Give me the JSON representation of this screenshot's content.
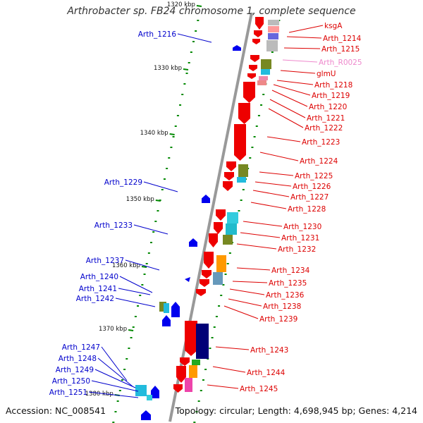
{
  "title": "Arthrobacter sp. FB24 chromosome 1, complete sequence",
  "accession": "Accession: NC_008541",
  "summary": "Topology: circular; Length: 4,698,945 bp; Genes: 4,214",
  "colors": {
    "backbone": "#999999",
    "left_label": "#0000cc",
    "right_label": "#dd0000",
    "rna_label": "#ee88cc",
    "strand_plus": "#ee0000",
    "strand_minus": "#0000ee"
  },
  "kbp_ticks": [
    "1320 kbp",
    "1330 kbp",
    "1340 kbp",
    "1350 kbp",
    "1360 kbp",
    "1370 kbp",
    "1380 kbp"
  ],
  "left_labels": [
    "Arth_1216",
    "Arth_1229",
    "Arth_1233",
    "Arth_1237",
    "Arth_1240",
    "Arth_1241",
    "Arth_1242",
    "Arth_1247",
    "Arth_1248",
    "Arth_1249",
    "Arth_1250",
    "Arth_1251"
  ],
  "right_labels": [
    "ksgA",
    "Arth_1214",
    "Arth_1215",
    "Arth_R0025",
    "glmU",
    "Arth_1218",
    "Arth_1219",
    "Arth_1220",
    "Arth_1221",
    "Arth_1222",
    "Arth_1223",
    "Arth_1224",
    "Arth_1225",
    "Arth_1226",
    "Arth_1227",
    "Arth_1228",
    "Arth_1230",
    "Arth_1231",
    "Arth_1232",
    "Arth_1234",
    "Arth_1235",
    "Arth_1236",
    "Arth_1238",
    "Arth_1239",
    "Arth_1243",
    "Arth_1244",
    "Arth_1245"
  ]
}
